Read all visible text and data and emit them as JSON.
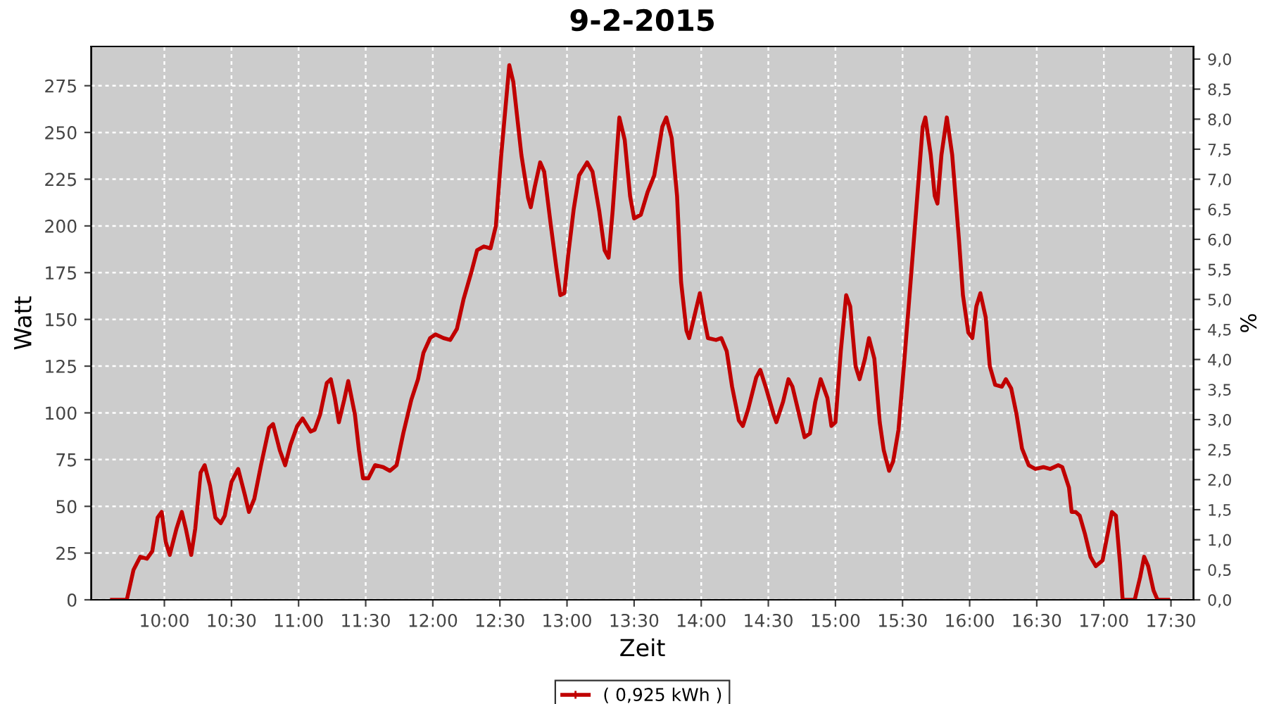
{
  "chart_data": {
    "type": "line",
    "title": "9-2-2015",
    "xlabel": "Zeit",
    "ylabel": "Watt",
    "y2label": "%",
    "xlim": [
      9.455,
      17.668
    ],
    "xticks": [
      {
        "value": 10,
        "label": "10:00"
      },
      {
        "value": 10.5,
        "label": "10:30"
      },
      {
        "value": 11,
        "label": "11:00"
      },
      {
        "value": 11.5,
        "label": "11:30"
      },
      {
        "value": 12,
        "label": "12:00"
      },
      {
        "value": 12.5,
        "label": "12:30"
      },
      {
        "value": 13,
        "label": "13:00"
      },
      {
        "value": 13.5,
        "label": "13:30"
      },
      {
        "value": 14,
        "label": "14:00"
      },
      {
        "value": 14.5,
        "label": "14:30"
      },
      {
        "value": 15,
        "label": "15:00"
      },
      {
        "value": 15.5,
        "label": "15:30"
      },
      {
        "value": 16,
        "label": "16:00"
      },
      {
        "value": 16.5,
        "label": "16:30"
      },
      {
        "value": 17,
        "label": "17:00"
      },
      {
        "value": 17.5,
        "label": "17:30"
      }
    ],
    "ylim": [
      0,
      296
    ],
    "yticks": [
      0,
      25,
      50,
      75,
      100,
      125,
      150,
      175,
      200,
      225,
      250,
      275
    ],
    "y2lim": [
      0,
      9.21
    ],
    "y2ticks": [
      {
        "value": 0,
        "label": "0,0"
      },
      {
        "value": 0.5,
        "label": "0,5"
      },
      {
        "value": 1,
        "label": "1,0"
      },
      {
        "value": 1.5,
        "label": "1,5"
      },
      {
        "value": 2,
        "label": "2,0"
      },
      {
        "value": 2.5,
        "label": "2,5"
      },
      {
        "value": 3,
        "label": "3,0"
      },
      {
        "value": 3.5,
        "label": "3,5"
      },
      {
        "value": 4,
        "label": "4,0"
      },
      {
        "value": 4.5,
        "label": "4,5"
      },
      {
        "value": 5,
        "label": "5,0"
      },
      {
        "value": 5.5,
        "label": "5,5"
      },
      {
        "value": 6,
        "label": "6,0"
      },
      {
        "value": 6.5,
        "label": "6,5"
      },
      {
        "value": 7,
        "label": "7,0"
      },
      {
        "value": 7.5,
        "label": "7,5"
      },
      {
        "value": 8,
        "label": "8,0"
      },
      {
        "value": 8.5,
        "label": "8,5"
      },
      {
        "value": 9,
        "label": "9,0"
      }
    ],
    "grid": true,
    "legend": "bottom",
    "marker": "none",
    "line_style": "solid",
    "series": [
      {
        "name": "( 0,925 kWh )",
        "color": "#c00000",
        "x": [
          9.61,
          9.72,
          9.77,
          9.82,
          9.87,
          9.91,
          9.95,
          9.98,
          10.01,
          10.04,
          10.09,
          10.13,
          10.16,
          10.2,
          10.23,
          10.27,
          10.3,
          10.34,
          10.38,
          10.42,
          10.45,
          10.5,
          10.55,
          10.6,
          10.63,
          10.67,
          10.72,
          10.78,
          10.81,
          10.86,
          10.9,
          10.94,
          10.99,
          11.03,
          11.09,
          11.12,
          11.16,
          11.21,
          11.24,
          11.27,
          11.3,
          11.34,
          11.37,
          11.42,
          11.45,
          11.48,
          11.52,
          11.57,
          11.63,
          11.68,
          11.73,
          11.78,
          11.84,
          11.89,
          11.93,
          11.98,
          12.02,
          12.08,
          12.13,
          12.18,
          12.23,
          12.29,
          12.33,
          12.38,
          12.43,
          12.47,
          12.51,
          12.57,
          12.6,
          12.66,
          12.71,
          12.73,
          12.76,
          12.8,
          12.83,
          12.88,
          12.92,
          12.95,
          12.98,
          13.01,
          13.05,
          13.09,
          13.15,
          13.19,
          13.24,
          13.28,
          13.31,
          13.34,
          13.39,
          13.43,
          13.47,
          13.5,
          13.55,
          13.6,
          13.65,
          13.71,
          13.74,
          13.78,
          13.82,
          13.85,
          13.89,
          13.91,
          13.96,
          13.99,
          14.02,
          14.05,
          14.11,
          14.15,
          14.19,
          14.23,
          14.28,
          14.31,
          14.35,
          14.41,
          14.44,
          14.48,
          14.54,
          14.56,
          14.61,
          14.65,
          14.68,
          14.73,
          14.77,
          14.81,
          14.85,
          14.89,
          14.94,
          14.97,
          15.0,
          15.04,
          15.08,
          15.11,
          15.15,
          15.18,
          15.22,
          15.25,
          15.29,
          15.33,
          15.36,
          15.4,
          15.43,
          15.47,
          15.51,
          15.56,
          15.61,
          15.65,
          15.67,
          15.71,
          15.74,
          15.76,
          15.79,
          15.83,
          15.87,
          15.92,
          15.95,
          15.99,
          16.02,
          16.05,
          16.08,
          16.12,
          16.15,
          16.19,
          16.24,
          16.27,
          16.31,
          16.35,
          16.39,
          16.44,
          16.49,
          16.55,
          16.6,
          16.66,
          16.69,
          16.74,
          16.76,
          16.79,
          16.82,
          16.86,
          16.9,
          16.94,
          16.99,
          17.03,
          17.06,
          17.09,
          17.12,
          17.14,
          17.23,
          17.27,
          17.3,
          17.33,
          17.37,
          17.4,
          17.48
        ],
        "values": [
          0,
          0,
          16,
          23,
          22,
          26,
          44,
          47,
          31,
          24,
          38,
          47,
          38,
          24,
          38,
          68,
          72,
          61,
          44,
          41,
          45,
          63,
          70,
          56,
          47,
          54,
          72,
          92,
          94,
          80,
          72,
          83,
          93,
          97,
          90,
          91,
          99,
          116,
          118,
          108,
          95,
          107,
          117,
          99,
          80,
          65,
          65,
          72,
          71,
          69,
          72,
          89,
          107,
          118,
          132,
          140,
          142,
          140,
          139,
          145,
          161,
          176,
          187,
          189,
          188,
          200,
          238,
          286,
          277,
          238,
          215,
          210,
          221,
          234,
          229,
          200,
          178,
          163,
          164,
          185,
          209,
          227,
          234,
          229,
          208,
          187,
          183,
          208,
          258,
          246,
          216,
          204,
          206,
          218,
          227,
          253,
          258,
          247,
          216,
          170,
          144,
          140,
          155,
          164,
          151,
          140,
          139,
          140,
          133,
          114,
          96,
          93,
          102,
          119,
          123,
          114,
          99,
          95,
          106,
          118,
          114,
          99,
          87,
          89,
          106,
          118,
          108,
          93,
          95,
          133,
          163,
          157,
          125,
          118,
          129,
          140,
          129,
          95,
          80,
          69,
          74,
          91,
          125,
          170,
          216,
          253,
          258,
          238,
          216,
          212,
          238,
          258,
          238,
          193,
          163,
          143,
          140,
          157,
          164,
          151,
          125,
          115,
          114,
          118,
          113,
          99,
          81,
          72,
          70,
          71,
          70,
          72,
          71,
          60,
          47,
          47,
          45,
          35,
          23,
          18,
          21,
          36,
          47,
          45,
          20,
          0,
          0,
          12,
          23,
          18,
          5,
          0,
          0
        ]
      }
    ]
  }
}
